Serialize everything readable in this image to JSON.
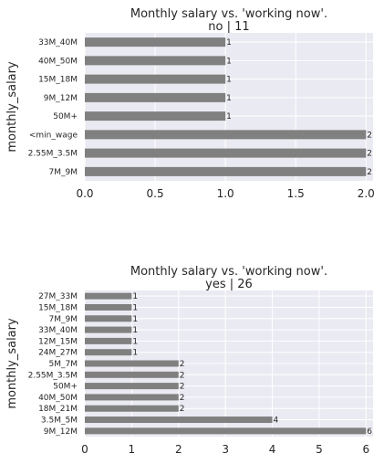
{
  "chart_data": [
    {
      "type": "bar",
      "orientation": "horizontal",
      "title_line1": "Monthly salary vs. 'working now'.",
      "title_line2": "no | 11",
      "ylabel": "monthly_salary",
      "xlabel": "",
      "categories": [
        "33M_40M",
        "40M_50M",
        "15M_18M",
        "9M_12M",
        "50M+",
        "<min_wage",
        "2.55M_3.5M",
        "7M_9M"
      ],
      "values": [
        1,
        1,
        1,
        1,
        1,
        2,
        2,
        2
      ],
      "xlim": [
        0,
        2.05
      ],
      "xticks": [
        0.0,
        0.5,
        1.0,
        1.5,
        2.0
      ],
      "xtick_labels": [
        "0.0",
        "0.5",
        "1.0",
        "1.5",
        "2.0"
      ],
      "data_labels": [
        "1",
        "1",
        "1",
        "1",
        "1",
        "2",
        "2",
        "2"
      ],
      "bar_color": "#808080",
      "background": "#eaeaf2",
      "grid": true
    },
    {
      "type": "bar",
      "orientation": "horizontal",
      "title_line1": "Monthly salary vs. 'working now'.",
      "title_line2": "yes | 26",
      "ylabel": "monthly_salary",
      "xlabel": "",
      "categories": [
        "27M_33M",
        "15M_18M",
        "7M_9M",
        "33M_40M",
        "12M_15M",
        "24M_27M",
        "5M_7M",
        "2.55M_3.5M",
        "50M+",
        "40M_50M",
        "18M_21M",
        "3.5M_5M",
        "9M_12M"
      ],
      "values": [
        1,
        1,
        1,
        1,
        1,
        1,
        2,
        2,
        2,
        2,
        2,
        4,
        6
      ],
      "xlim": [
        0,
        6.15
      ],
      "xticks": [
        0,
        1,
        2,
        3,
        4,
        5,
        6
      ],
      "xtick_labels": [
        "0",
        "1",
        "2",
        "3",
        "4",
        "5",
        "6"
      ],
      "data_labels": [
        "1",
        "1",
        "1",
        "1",
        "1",
        "1",
        "2",
        "2",
        "2",
        "2",
        "2",
        "4",
        "6"
      ],
      "bar_color": "#808080",
      "background": "#eaeaf2",
      "grid": true
    }
  ]
}
